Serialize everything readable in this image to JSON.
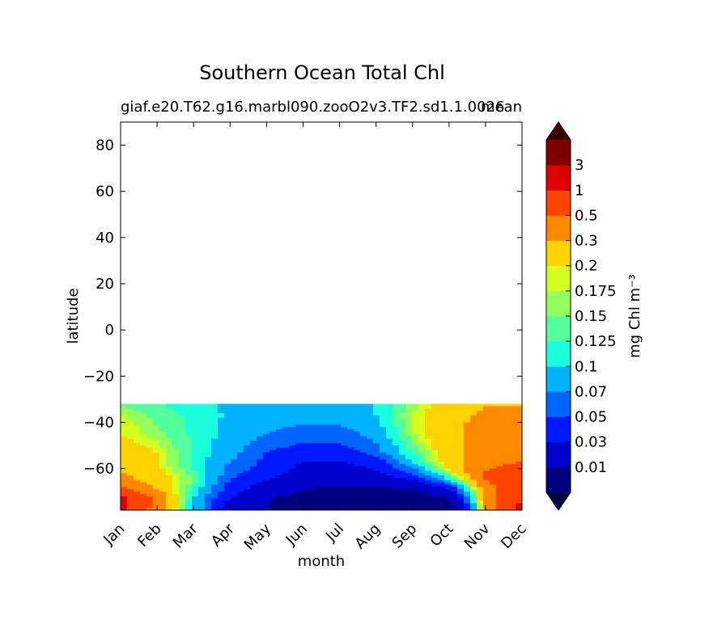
{
  "chart_data": {
    "type": "heatmap",
    "title": "Southern Ocean Total Chl",
    "subtitle_left": "giaf.e20.T62.g16.marbl090.zooO2v3.TF2.sd1.1.0026",
    "subtitle_right": "mean",
    "xlabel": "month",
    "ylabel": "latitude",
    "x_categories": [
      "Jan",
      "Feb",
      "Mar",
      "Apr",
      "May",
      "Jun",
      "Jul",
      "Aug",
      "Sep",
      "Oct",
      "Nov",
      "Dec"
    ],
    "yticks": [
      80,
      60,
      40,
      20,
      0,
      -20,
      -40,
      -60
    ],
    "ytick_labels": [
      "80",
      "60",
      "40",
      "20",
      "0",
      "−20",
      "−40",
      "−60"
    ],
    "ylim": [
      -78,
      90
    ],
    "data_lat_range": [
      -78,
      -32
    ],
    "colorbar": {
      "label": "mg Chl m⁻³",
      "extend": "both",
      "levels": [
        0.01,
        0.03,
        0.05,
        0.07,
        0.1,
        0.125,
        0.15,
        0.175,
        0.2,
        0.3,
        0.5,
        1,
        3
      ],
      "level_labels": [
        "0.01",
        "0.03",
        "0.05",
        "0.07",
        "0.1",
        "0.125",
        "0.15",
        "0.175",
        "0.2",
        "0.3",
        "0.5",
        "1",
        "3"
      ],
      "colors": [
        "#00007f",
        "#0000cc",
        "#0019ff",
        "#0066ff",
        "#00b2ff",
        "#19ffde",
        "#51ff9c",
        "#93ff5b",
        "#d4ff1f",
        "#ffd300",
        "#ff8a00",
        "#ff4300",
        "#e00000",
        "#7f0000"
      ],
      "under_color": "#000040",
      "over_color": "#3c0000"
    },
    "z_lat": [
      -77,
      -73,
      -69,
      -65,
      -61,
      -57,
      -53,
      -49,
      -45,
      -41,
      -37,
      -33
    ],
    "z_months": [
      1,
      2,
      3,
      4,
      5,
      6,
      7,
      8,
      9,
      10,
      11,
      12
    ],
    "z": [
      [
        1.2,
        0.4,
        0.1,
        0.02,
        0.01,
        0.005,
        0.005,
        0.005,
        0.005,
        0.005,
        0.3,
        1.2
      ],
      [
        1.2,
        0.5,
        0.1,
        0.03,
        0.01,
        0.008,
        0.005,
        0.005,
        0.005,
        0.01,
        0.4,
        1.0
      ],
      [
        0.6,
        0.3,
        0.12,
        0.04,
        0.02,
        0.01,
        0.008,
        0.008,
        0.01,
        0.03,
        0.4,
        0.8
      ],
      [
        0.35,
        0.25,
        0.15,
        0.05,
        0.03,
        0.02,
        0.015,
        0.02,
        0.03,
        0.1,
        0.5,
        0.7
      ],
      [
        0.3,
        0.22,
        0.13,
        0.06,
        0.04,
        0.025,
        0.02,
        0.03,
        0.06,
        0.2,
        0.5,
        0.6
      ],
      [
        0.25,
        0.2,
        0.12,
        0.07,
        0.045,
        0.03,
        0.03,
        0.04,
        0.1,
        0.25,
        0.45,
        0.5
      ],
      [
        0.25,
        0.2,
        0.12,
        0.08,
        0.05,
        0.04,
        0.04,
        0.06,
        0.13,
        0.25,
        0.4,
        0.45
      ],
      [
        0.22,
        0.18,
        0.12,
        0.085,
        0.06,
        0.05,
        0.05,
        0.07,
        0.15,
        0.27,
        0.35,
        0.4
      ],
      [
        0.2,
        0.16,
        0.12,
        0.09,
        0.07,
        0.06,
        0.06,
        0.08,
        0.17,
        0.28,
        0.35,
        0.38
      ],
      [
        0.2,
        0.15,
        0.12,
        0.09,
        0.075,
        0.07,
        0.07,
        0.09,
        0.17,
        0.28,
        0.33,
        0.35
      ],
      [
        0.18,
        0.14,
        0.12,
        0.095,
        0.08,
        0.075,
        0.075,
        0.1,
        0.18,
        0.27,
        0.32,
        0.33
      ],
      [
        0.15,
        0.13,
        0.11,
        0.095,
        0.085,
        0.08,
        0.08,
        0.1,
        0.16,
        0.25,
        0.3,
        0.3
      ]
    ]
  }
}
